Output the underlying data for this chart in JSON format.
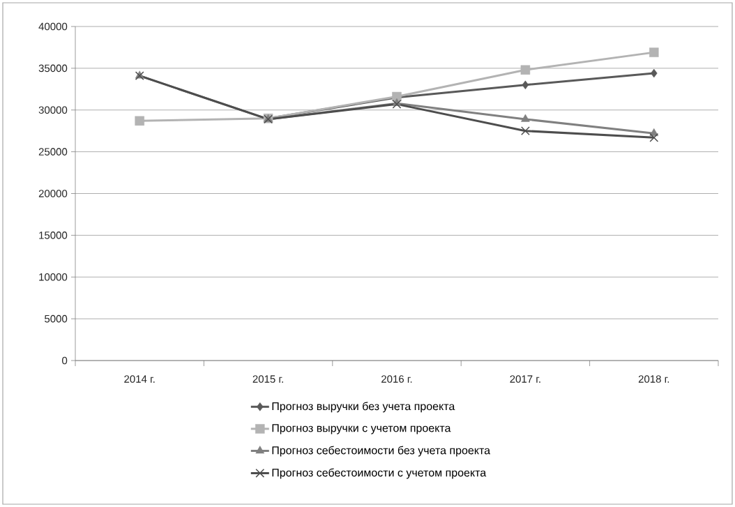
{
  "chart_data": {
    "type": "line",
    "categories": [
      "2014 г.",
      "2015 г.",
      "2016 г.",
      "2017 г.",
      "2018 г."
    ],
    "series": [
      {
        "name": "Прогноз выручки без учета проекта",
        "color": "#595959",
        "marker": "diamond",
        "values": [
          null,
          29000,
          31500,
          33000,
          34400
        ]
      },
      {
        "name": "Прогноз выручки с учетом проекта",
        "color": "#b3b3b3",
        "marker": "square",
        "values": [
          28700,
          29000,
          31600,
          34800,
          36900
        ]
      },
      {
        "name": "Прогноз себестоимости без учета проекта",
        "color": "#808080",
        "marker": "triangle",
        "values": [
          34100,
          28900,
          30800,
          28900,
          27200
        ]
      },
      {
        "name": "Прогноз себестоимости с учетом проекта",
        "color": "#4d4d4d",
        "marker": "cross",
        "values": [
          34100,
          28900,
          30700,
          27500,
          26700
        ]
      }
    ],
    "ylim": [
      0,
      40000
    ],
    "yticks": [
      0,
      5000,
      10000,
      15000,
      20000,
      25000,
      30000,
      35000,
      40000
    ],
    "grid": "y",
    "legend": "bottom",
    "line_style": "solid"
  }
}
